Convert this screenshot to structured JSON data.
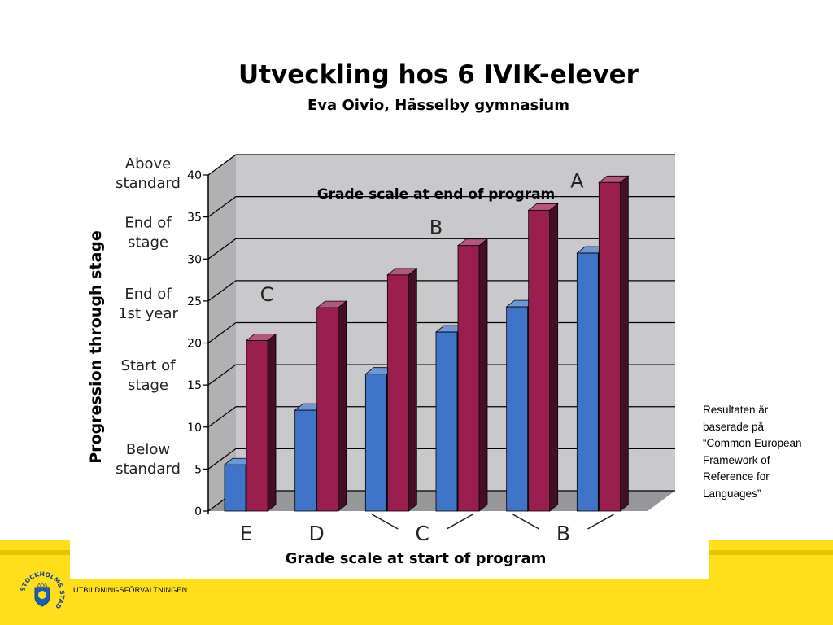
{
  "slide": {
    "title": "Utveckling hos 6 IVIK-elever",
    "subtitle": "Eva Oivio, Hässelby gymnasium",
    "note": "Resultaten är baserade på “Common European Framework of Reference for Languages”",
    "organization": "UTBILDNINGSFÖRVALTNINGEN",
    "logo_text": "STOCKHOLMS STAD"
  },
  "colors": {
    "accent_yellow": "#ffdf1c",
    "series_start": "#3f74c8",
    "series_end": "#9a1f4f",
    "plot_bg": "#c9c9cc"
  },
  "chart_data": {
    "type": "bar",
    "title": "Grade scale at end of program",
    "xlabel": "Grade scale at start of program",
    "ylabel": "Progression through stage",
    "ylim": [
      0,
      40
    ],
    "yticks": [
      0,
      5,
      10,
      15,
      20,
      25,
      30,
      35,
      40
    ],
    "stage_labels": [
      {
        "label": "Above standard",
        "value": 40
      },
      {
        "label": "End of stage",
        "value": 33
      },
      {
        "label": "End of 1st year",
        "value": 24.5
      },
      {
        "label": "Start of stage",
        "value": 16
      },
      {
        "label": "Below standard",
        "value": 6
      }
    ],
    "grid": true,
    "series": [
      {
        "values": [
          5.5,
          12,
          16.3,
          21.3,
          24.3,
          30.7
        ]
      },
      {
        "values": [
          20.3,
          24.2,
          28.1,
          31.6,
          35.8,
          39.1
        ]
      }
    ],
    "categories": [
      "",
      "",
      "",
      "",
      "",
      ""
    ],
    "start_grade_labels": [
      {
        "label": "E",
        "bars": [
          0,
          0
        ]
      },
      {
        "label": "D",
        "bars": [
          1,
          1
        ]
      },
      {
        "label": "C",
        "bars": [
          2,
          3
        ]
      },
      {
        "label": "B",
        "bars": [
          4,
          5
        ]
      }
    ],
    "end_grade_labels": [
      {
        "label": "C",
        "value": 25
      },
      {
        "label": "B",
        "value": 33
      },
      {
        "label": "A",
        "value": 38.5
      }
    ]
  }
}
